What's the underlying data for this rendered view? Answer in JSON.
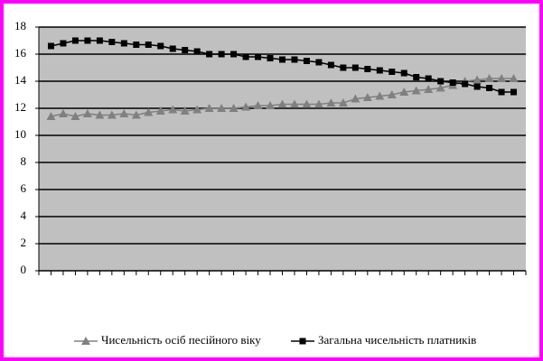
{
  "chart_data": {
    "type": "line",
    "categories": [
      null,
      null,
      null,
      null,
      null,
      null,
      null,
      null,
      null,
      null,
      null,
      null,
      null,
      null,
      null,
      null,
      null,
      null,
      null,
      null,
      null,
      null,
      null,
      null,
      null,
      null,
      null,
      null,
      null,
      null,
      null,
      null,
      null,
      null,
      null,
      null,
      null,
      null,
      null
    ],
    "series": [
      {
        "name": "Чисельність осіб песійного віку",
        "color": "#808080",
        "marker": "triangle",
        "values": [
          11.4,
          11.6,
          11.4,
          11.6,
          11.5,
          11.5,
          11.6,
          11.5,
          11.7,
          11.8,
          11.9,
          11.8,
          11.9,
          12.0,
          12.0,
          12.0,
          12.1,
          12.2,
          12.2,
          12.3,
          12.3,
          12.3,
          12.3,
          12.4,
          12.4,
          12.7,
          12.8,
          12.9,
          13.0,
          13.2,
          13.3,
          13.4,
          13.5,
          13.7,
          14.0,
          14.1,
          14.2,
          14.2,
          14.2
        ]
      },
      {
        "name": "Загальна чисельність платників",
        "color": "#000000",
        "marker": "square",
        "values": [
          16.6,
          16.8,
          17.0,
          17.0,
          17.0,
          16.9,
          16.8,
          16.7,
          16.7,
          16.6,
          16.4,
          16.3,
          16.2,
          16.0,
          16.0,
          16.0,
          15.8,
          15.8,
          15.7,
          15.6,
          15.6,
          15.5,
          15.4,
          15.2,
          15.0,
          15.0,
          14.9,
          14.8,
          14.7,
          14.6,
          14.3,
          14.2,
          14.0,
          13.9,
          13.8,
          13.6,
          13.5,
          13.2,
          13.2
        ]
      }
    ],
    "ylim": [
      0,
      18
    ],
    "yticks": [
      0,
      2,
      4,
      6,
      8,
      10,
      12,
      14,
      16,
      18
    ],
    "grid": true,
    "legend": "bottom"
  }
}
